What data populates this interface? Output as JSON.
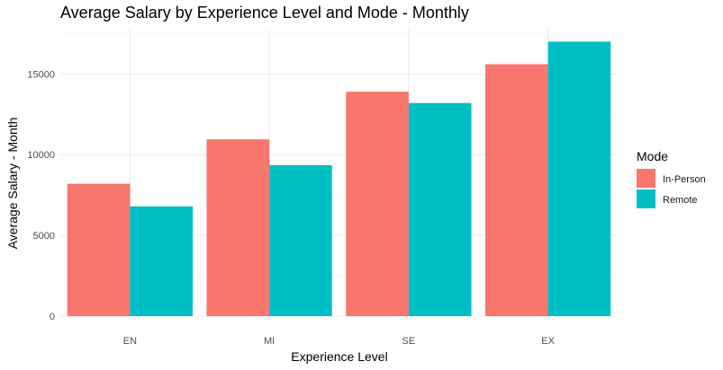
{
  "chart_data": {
    "type": "bar",
    "title": "Average Salary by Experience Level and Mode - Monthly",
    "xlabel": "Experience Level",
    "ylabel": "Average Salary - Month",
    "categories": [
      "EN",
      "MI",
      "SE",
      "EX"
    ],
    "series": [
      {
        "name": "In-Person",
        "color": "#F8766D",
        "values": [
          8200,
          10950,
          13900,
          15600
        ]
      },
      {
        "name": "Remote",
        "color": "#00BFC4",
        "values": [
          6800,
          9350,
          13200,
          17000
        ]
      }
    ],
    "ylim": [
      0,
      17800
    ],
    "yticks": [
      0,
      5000,
      10000,
      15000
    ],
    "ytick_labels": [
      "0",
      "5000",
      "10000",
      "15000"
    ],
    "grid": true,
    "legend": {
      "title": "Mode",
      "position": "right"
    }
  }
}
